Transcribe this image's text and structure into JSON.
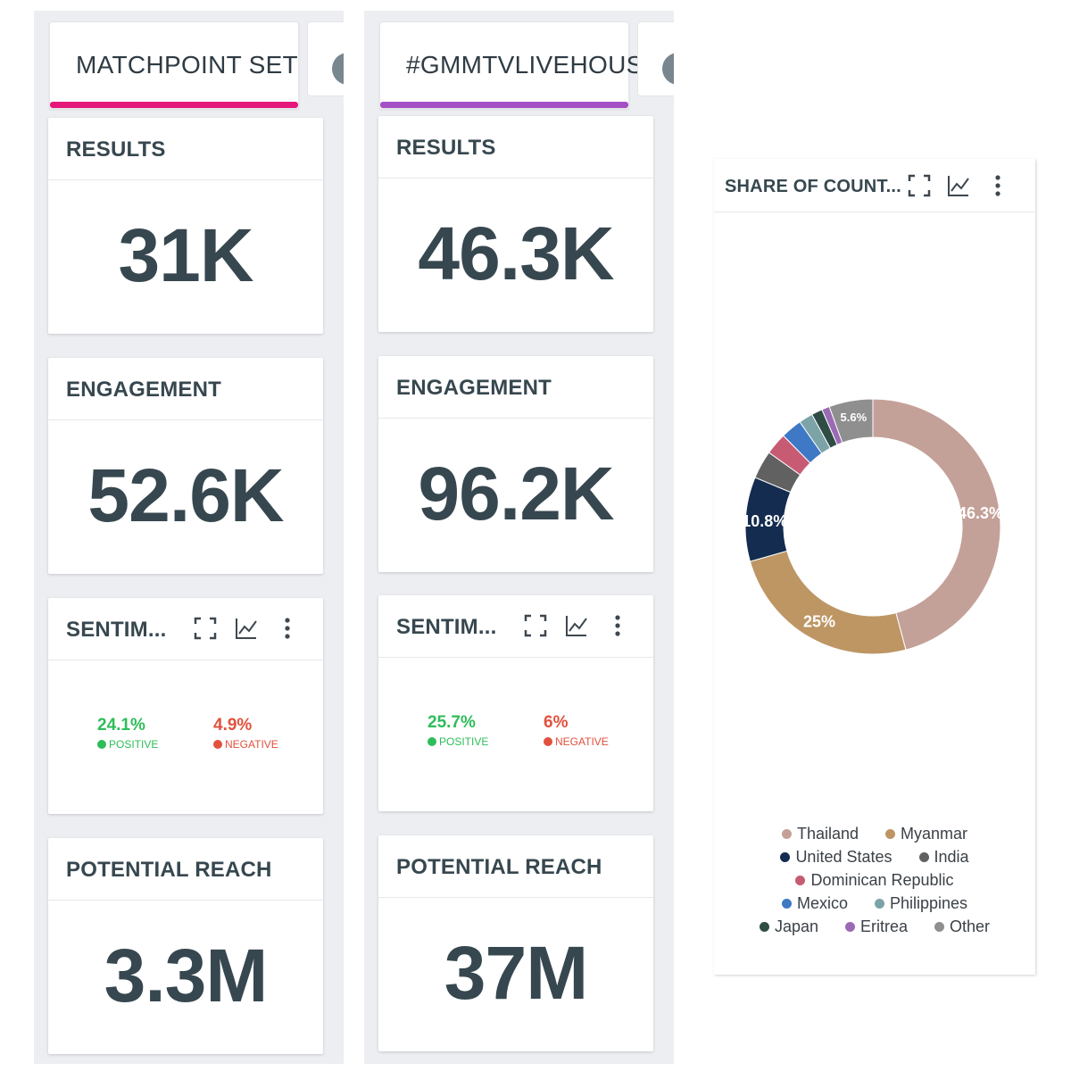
{
  "columns": [
    {
      "tab": {
        "label": "MATCHPOINT SET ...",
        "color": "#e6177a"
      },
      "results": {
        "title": "RESULTS",
        "value": "31K"
      },
      "engagement": {
        "title": "ENGAGEMENT",
        "value": "52.6K"
      },
      "sentiment": {
        "title": "SENTIM...",
        "positive_value": "24.1%",
        "positive_label": "POSITIVE",
        "negative_value": "4.9%",
        "negative_label": "NEGATIVE"
      },
      "reach": {
        "title": "POTENTIAL REACH",
        "value": "3.3M"
      }
    },
    {
      "tab": {
        "label": "#GMMTVLIVEHOUSE",
        "color": "#a44fc4"
      },
      "results": {
        "title": "RESULTS",
        "value": "46.3K"
      },
      "engagement": {
        "title": "ENGAGEMENT",
        "value": "96.2K"
      },
      "sentiment": {
        "title": "SENTIM...",
        "positive_value": "25.7%",
        "positive_label": "POSITIVE",
        "negative_value": "6%",
        "negative_label": "NEGATIVE"
      },
      "reach": {
        "title": "POTENTIAL REACH",
        "value": "37M"
      }
    }
  ],
  "icons": {
    "expand": "expand-icon",
    "trend": "line-chart-icon",
    "menu": "more-vertical-icon"
  },
  "chart_data": {
    "type": "pie",
    "variant": "donut",
    "title": "SHARE OF COUNT...",
    "categories": [
      "Thailand",
      "Myanmar",
      "United States",
      "India",
      "Dominican Republic",
      "Mexico",
      "Philippines",
      "Japan",
      "Eritrea",
      "Other"
    ],
    "values": [
      46.3,
      25,
      10.8,
      3.6,
      2.8,
      2.7,
      1.8,
      1.4,
      1.0,
      5.6
    ],
    "colors": [
      "#c4a198",
      "#bd9664",
      "#132c4f",
      "#616161",
      "#c75b73",
      "#3f78c4",
      "#7ba3a8",
      "#2f4d45",
      "#9b6ab5",
      "#8f8f8f"
    ],
    "slice_labels": [
      "46.3%",
      "25%",
      "10.8%",
      "",
      "",
      "",
      "",
      "",
      "",
      "5.6%"
    ],
    "legend_position": "bottom"
  }
}
